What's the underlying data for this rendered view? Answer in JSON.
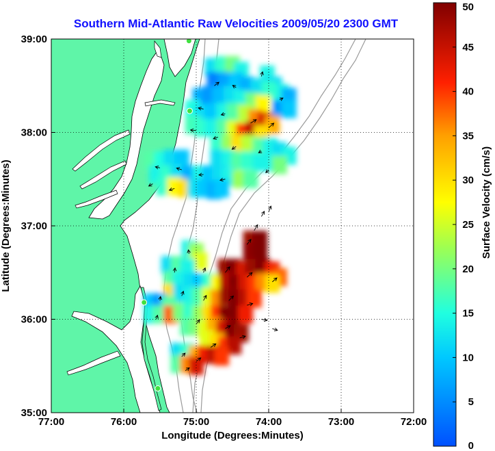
{
  "chart_data": {
    "type": "heatmap",
    "title": "Southern Mid-Atlantic Raw Velocities 2009/05/20 2300 GMT",
    "xlabel": "Longitude (Degrees:Minutes)",
    "ylabel": "Latitude (Degrees:Minutes)",
    "xlim": [
      -77,
      -72
    ],
    "ylim": [
      35,
      39
    ],
    "x_ticks": [
      -77,
      -76,
      -75,
      -74,
      -73,
      -72
    ],
    "x_tick_labels": [
      "77:00",
      "76:00",
      "75:00",
      "74:00",
      "73:00",
      "72:00"
    ],
    "y_ticks": [
      35,
      36,
      37,
      38,
      39
    ],
    "y_tick_labels": [
      "35:00",
      "36:00",
      "37:00",
      "38:00",
      "39:00"
    ],
    "grid": true,
    "colorbar": {
      "label": "Surface Velocity (cm/s)",
      "min": 0,
      "max": 50,
      "ticks": [
        0,
        5,
        10,
        15,
        20,
        25,
        30,
        35,
        40,
        45,
        50
      ],
      "tick_labels": [
        "0",
        "5",
        "10",
        "15",
        "20",
        "25",
        "30",
        "35",
        "40",
        "45",
        "50"
      ]
    },
    "land_color": "#5ff5a8",
    "coast_stations": [
      {
        "lon": -75.1,
        "lat": 38.98
      },
      {
        "lon": -75.09,
        "lat": 38.23
      },
      {
        "lon": -75.72,
        "lat": 36.18
      },
      {
        "lon": -75.53,
        "lat": 35.26
      }
    ],
    "regions": [
      {
        "name": "north",
        "cells": [
          [
            -74.78,
            38.7,
            12
          ],
          [
            -74.64,
            38.72,
            16
          ],
          [
            -74.5,
            38.72,
            20
          ],
          [
            -74.38,
            38.66,
            14
          ],
          [
            -74.02,
            38.62,
            14
          ],
          [
            -73.92,
            38.5,
            12
          ],
          [
            -73.82,
            38.42,
            14
          ],
          [
            -73.72,
            38.38,
            8
          ],
          [
            -74.75,
            38.55,
            4
          ],
          [
            -74.6,
            38.55,
            7
          ],
          [
            -74.45,
            38.55,
            10
          ],
          [
            -74.3,
            38.5,
            8
          ],
          [
            -74.15,
            38.48,
            12
          ],
          [
            -74.0,
            38.45,
            16
          ],
          [
            -73.85,
            38.25,
            6
          ],
          [
            -73.72,
            38.25,
            10
          ],
          [
            -74.95,
            38.38,
            8
          ],
          [
            -74.82,
            38.4,
            6
          ],
          [
            -74.68,
            38.4,
            9
          ],
          [
            -74.52,
            38.4,
            12
          ],
          [
            -74.38,
            38.36,
            14
          ],
          [
            -74.22,
            38.33,
            20
          ],
          [
            -74.08,
            38.3,
            28
          ],
          [
            -75.05,
            38.25,
            15
          ],
          [
            -74.92,
            38.2,
            12
          ],
          [
            -74.78,
            38.22,
            10
          ],
          [
            -74.62,
            38.22,
            14
          ],
          [
            -74.48,
            38.22,
            18
          ],
          [
            -74.32,
            38.2,
            24
          ],
          [
            -74.18,
            38.15,
            36
          ],
          [
            -74.05,
            38.12,
            44
          ],
          [
            -73.95,
            38.08,
            34
          ],
          [
            -75.05,
            38.08,
            17
          ],
          [
            -74.92,
            38.05,
            16
          ],
          [
            -74.78,
            38.05,
            14
          ],
          [
            -74.62,
            38.05,
            18
          ],
          [
            -74.48,
            38.03,
            26
          ],
          [
            -74.35,
            38.0,
            40
          ],
          [
            -74.22,
            38.02,
            46
          ],
          [
            -74.1,
            37.98,
            30
          ],
          [
            -74.7,
            37.88,
            16
          ],
          [
            -74.55,
            37.88,
            22
          ],
          [
            -74.42,
            37.88,
            30
          ],
          [
            -74.28,
            37.88,
            24
          ],
          [
            -74.12,
            37.85,
            18
          ],
          [
            -73.98,
            37.85,
            14
          ],
          [
            -73.85,
            37.8,
            12
          ],
          [
            -73.72,
            37.75,
            14
          ],
          [
            -75.62,
            37.7,
            18
          ],
          [
            -75.48,
            37.7,
            15
          ],
          [
            -75.35,
            37.72,
            12
          ],
          [
            -75.2,
            37.72,
            10
          ],
          [
            -74.7,
            37.72,
            12
          ],
          [
            -74.55,
            37.72,
            14
          ],
          [
            -74.42,
            37.7,
            18
          ],
          [
            -74.28,
            37.7,
            16
          ],
          [
            -74.12,
            37.68,
            14
          ],
          [
            -73.98,
            37.68,
            14
          ],
          [
            -73.85,
            37.65,
            20
          ],
          [
            -75.55,
            37.55,
            14
          ],
          [
            -75.4,
            37.55,
            16
          ],
          [
            -75.25,
            37.57,
            12
          ],
          [
            -75.1,
            37.55,
            8
          ],
          [
            -74.95,
            37.55,
            14
          ],
          [
            -74.82,
            37.55,
            10
          ],
          [
            -74.68,
            37.55,
            12
          ],
          [
            -74.55,
            37.52,
            14
          ],
          [
            -74.4,
            37.5,
            22
          ],
          [
            -74.25,
            37.5,
            18
          ],
          [
            -75.45,
            37.42,
            16
          ],
          [
            -75.3,
            37.42,
            28
          ],
          [
            -75.15,
            37.4,
            30
          ],
          [
            -75.02,
            37.4,
            12
          ],
          [
            -74.88,
            37.4,
            10
          ],
          [
            -74.75,
            37.38,
            8
          ],
          [
            -74.65,
            37.4,
            10
          ]
        ]
      },
      {
        "name": "south",
        "cells": [
          [
            -74.25,
            36.85,
            48
          ],
          [
            -74.12,
            36.85,
            50
          ],
          [
            -74.25,
            36.72,
            49
          ],
          [
            -74.12,
            36.72,
            50
          ],
          [
            -75.1,
            36.75,
            14
          ],
          [
            -75.0,
            36.72,
            22
          ],
          [
            -74.95,
            36.62,
            26
          ],
          [
            -75.38,
            36.58,
            12
          ],
          [
            -75.25,
            36.58,
            18
          ],
          [
            -75.12,
            36.55,
            14
          ],
          [
            -74.6,
            36.55,
            48
          ],
          [
            -74.48,
            36.55,
            50
          ],
          [
            -74.35,
            36.52,
            44
          ],
          [
            -74.22,
            36.55,
            48
          ],
          [
            -74.08,
            36.55,
            50
          ],
          [
            -73.95,
            36.52,
            42
          ],
          [
            -73.85,
            36.45,
            38
          ],
          [
            -75.35,
            36.42,
            18
          ],
          [
            -75.22,
            36.42,
            14
          ],
          [
            -75.08,
            36.4,
            12
          ],
          [
            -74.95,
            36.4,
            10
          ],
          [
            -74.82,
            36.4,
            16
          ],
          [
            -74.7,
            36.38,
            28
          ],
          [
            -74.58,
            36.4,
            46
          ],
          [
            -74.45,
            36.38,
            50
          ],
          [
            -74.32,
            36.38,
            44
          ],
          [
            -74.2,
            36.38,
            40
          ],
          [
            -74.08,
            36.4,
            36
          ],
          [
            -73.95,
            36.38,
            30
          ],
          [
            -75.35,
            36.28,
            30
          ],
          [
            -75.22,
            36.28,
            12
          ],
          [
            -75.08,
            36.25,
            14
          ],
          [
            -74.95,
            36.25,
            18
          ],
          [
            -74.82,
            36.25,
            26
          ],
          [
            -74.7,
            36.22,
            36
          ],
          [
            -74.58,
            36.25,
            48
          ],
          [
            -74.45,
            36.22,
            50
          ],
          [
            -74.32,
            36.22,
            46
          ],
          [
            -74.2,
            36.22,
            40
          ],
          [
            -75.62,
            36.18,
            10
          ],
          [
            -75.5,
            36.18,
            6
          ],
          [
            -75.38,
            36.15,
            18
          ],
          [
            -75.62,
            36.05,
            14
          ],
          [
            -75.5,
            36.05,
            18
          ],
          [
            -75.35,
            36.05,
            38
          ],
          [
            -75.22,
            36.08,
            20
          ],
          [
            -75.08,
            36.08,
            16
          ],
          [
            -74.95,
            36.05,
            22
          ],
          [
            -74.82,
            36.05,
            30
          ],
          [
            -74.7,
            36.05,
            40
          ],
          [
            -74.58,
            36.05,
            50
          ],
          [
            -74.45,
            36.05,
            50
          ],
          [
            -74.32,
            36.05,
            42
          ],
          [
            -75.12,
            35.92,
            18
          ],
          [
            -75.0,
            35.92,
            20
          ],
          [
            -74.88,
            35.9,
            26
          ],
          [
            -74.75,
            35.92,
            34
          ],
          [
            -74.62,
            35.9,
            44
          ],
          [
            -74.5,
            35.88,
            50
          ],
          [
            -74.38,
            35.85,
            48
          ],
          [
            -74.85,
            35.78,
            26
          ],
          [
            -74.72,
            35.75,
            30
          ],
          [
            -74.6,
            35.72,
            40
          ],
          [
            -74.48,
            35.72,
            46
          ],
          [
            -75.25,
            35.65,
            12
          ],
          [
            -75.12,
            35.65,
            16
          ],
          [
            -75.0,
            35.62,
            34
          ],
          [
            -74.88,
            35.62,
            42
          ],
          [
            -74.75,
            35.62,
            46
          ],
          [
            -74.65,
            35.6,
            40
          ],
          [
            -75.25,
            35.52,
            18
          ],
          [
            -75.12,
            35.52,
            36
          ],
          [
            -75.0,
            35.5,
            44
          ]
        ]
      }
    ],
    "vectors": [
      {
        "lon": -74.75,
        "lat": 38.5,
        "u": 0.16,
        "v": 0.12
      },
      {
        "lon": -74.45,
        "lat": 38.48,
        "u": -0.12,
        "v": 0.08
      },
      {
        "lon": -74.1,
        "lat": 38.6,
        "u": 0.04,
        "v": 0.16
      },
      {
        "lon": -73.85,
        "lat": 38.35,
        "u": 0.12,
        "v": 0.06
      },
      {
        "lon": -74.9,
        "lat": 38.25,
        "u": -0.18,
        "v": 0.04
      },
      {
        "lon": -74.6,
        "lat": 38.2,
        "u": -0.14,
        "v": -0.04
      },
      {
        "lon": -74.25,
        "lat": 38.1,
        "u": 0.2,
        "v": 0.12
      },
      {
        "lon": -74.0,
        "lat": 38.05,
        "u": 0.18,
        "v": 0.16
      },
      {
        "lon": -75.0,
        "lat": 38.02,
        "u": -0.2,
        "v": 0.02
      },
      {
        "lon": -74.7,
        "lat": 37.95,
        "u": -0.16,
        "v": -0.06
      },
      {
        "lon": -74.45,
        "lat": 37.85,
        "u": -0.14,
        "v": -0.1
      },
      {
        "lon": -74.1,
        "lat": 37.8,
        "u": -0.1,
        "v": -0.06
      },
      {
        "lon": -75.5,
        "lat": 37.62,
        "u": -0.16,
        "v": 0.04
      },
      {
        "lon": -75.2,
        "lat": 37.6,
        "u": -0.18,
        "v": 0.06
      },
      {
        "lon": -74.9,
        "lat": 37.55,
        "u": -0.16,
        "v": -0.02
      },
      {
        "lon": -74.6,
        "lat": 37.5,
        "u": -0.18,
        "v": -0.04
      },
      {
        "lon": -75.6,
        "lat": 37.45,
        "u": -0.14,
        "v": -0.08
      },
      {
        "lon": -75.3,
        "lat": 37.4,
        "u": -0.18,
        "v": -0.06
      },
      {
        "lon": -74.0,
        "lat": 37.6,
        "u": -0.1,
        "v": -0.1
      },
      {
        "lon": -74.1,
        "lat": 37.1,
        "u": 0.1,
        "v": 0.18
      },
      {
        "lon": -74.0,
        "lat": 37.15,
        "u": 0.08,
        "v": 0.2
      },
      {
        "lon": -74.2,
        "lat": 36.95,
        "u": 0.12,
        "v": 0.2
      },
      {
        "lon": -74.3,
        "lat": 36.8,
        "u": 0.14,
        "v": 0.18
      },
      {
        "lon": -75.1,
        "lat": 36.7,
        "u": -0.02,
        "v": 0.14
      },
      {
        "lon": -75.3,
        "lat": 36.5,
        "u": 0.02,
        "v": 0.16
      },
      {
        "lon": -74.9,
        "lat": 36.5,
        "u": 0.06,
        "v": 0.16
      },
      {
        "lon": -74.6,
        "lat": 36.5,
        "u": 0.16,
        "v": 0.2
      },
      {
        "lon": -74.3,
        "lat": 36.45,
        "u": 0.18,
        "v": 0.16
      },
      {
        "lon": -73.95,
        "lat": 36.4,
        "u": 0.16,
        "v": 0.14
      },
      {
        "lon": -75.5,
        "lat": 36.2,
        "u": 0.02,
        "v": 0.14
      },
      {
        "lon": -75.2,
        "lat": 36.25,
        "u": 0.06,
        "v": 0.16
      },
      {
        "lon": -74.9,
        "lat": 36.2,
        "u": 0.1,
        "v": 0.18
      },
      {
        "lon": -74.55,
        "lat": 36.2,
        "u": 0.16,
        "v": 0.16
      },
      {
        "lon": -74.3,
        "lat": 36.15,
        "u": 0.2,
        "v": 0.06
      },
      {
        "lon": -74.1,
        "lat": 36.0,
        "u": 0.2,
        "v": -0.04
      },
      {
        "lon": -73.95,
        "lat": 35.9,
        "u": 0.18,
        "v": -0.06
      },
      {
        "lon": -75.55,
        "lat": 36.0,
        "u": 0.04,
        "v": 0.14
      },
      {
        "lon": -75.0,
        "lat": 35.95,
        "u": 0.12,
        "v": 0.14
      },
      {
        "lon": -74.6,
        "lat": 35.9,
        "u": 0.18,
        "v": 0.1
      },
      {
        "lon": -74.4,
        "lat": 35.8,
        "u": 0.2,
        "v": 0.06
      },
      {
        "lon": -74.8,
        "lat": 35.7,
        "u": 0.18,
        "v": 0.12
      },
      {
        "lon": -75.2,
        "lat": 35.6,
        "u": 0.12,
        "v": 0.12
      },
      {
        "lon": -75.0,
        "lat": 35.55,
        "u": 0.16,
        "v": 0.12
      },
      {
        "lon": -75.15,
        "lat": 35.45,
        "u": 0.14,
        "v": 0.1
      }
    ]
  }
}
